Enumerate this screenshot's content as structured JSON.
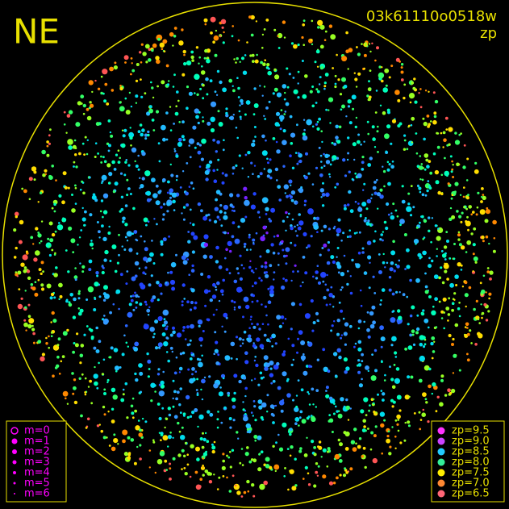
{
  "header": {
    "direction": "NE",
    "frame_id": "03k61110o0518w",
    "mode": "zp"
  },
  "magnitude_legend": {
    "color": "#ff00ff",
    "items": [
      "m=0",
      "m=1",
      "m=2",
      "m=3",
      "m=4",
      "m=5",
      "m=6"
    ]
  },
  "zp_legend": {
    "items": [
      {
        "label": "zp=9.5",
        "color": "#ff33ff"
      },
      {
        "label": "zp=9.0",
        "color": "#cc44ff"
      },
      {
        "label": "zp=8.5",
        "color": "#22ccff"
      },
      {
        "label": "zp=8.0",
        "color": "#33ee99"
      },
      {
        "label": "zp=7.5",
        "color": "#ffee00"
      },
      {
        "label": "zp=7.0",
        "color": "#ff8833"
      },
      {
        "label": "zp=6.5",
        "color": "#ff6677"
      }
    ]
  }
}
